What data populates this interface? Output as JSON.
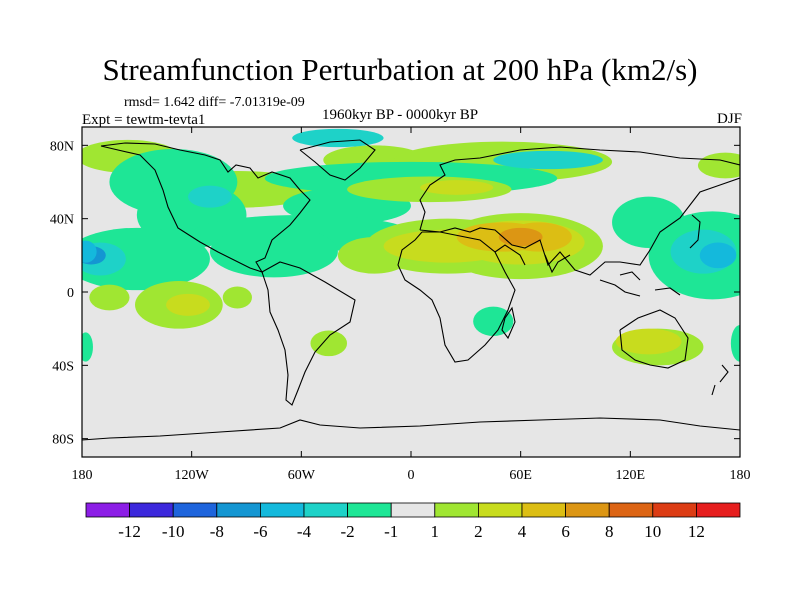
{
  "chart_data": {
    "type": "heatmap",
    "title": "Streamfunction Perturbation at 200 hPa (km2/s)",
    "stats_label": "rmsd= 1.642 diff= -7.01319e-09",
    "experiment_label": "Expt = tewtm-tevta1",
    "period_label": "1960kyr BP - 0000kyr BP",
    "season_label": "DJF",
    "x_axis": {
      "range": [
        -180,
        180
      ],
      "ticks": [
        {
          "value": -180,
          "label": "180"
        },
        {
          "value": -120,
          "label": "120W"
        },
        {
          "value": -60,
          "label": "60W"
        },
        {
          "value": 0,
          "label": "0"
        },
        {
          "value": 60,
          "label": "60E"
        },
        {
          "value": 120,
          "label": "120E"
        },
        {
          "value": 180,
          "label": "180"
        }
      ]
    },
    "y_axis": {
      "range": [
        -90,
        90
      ],
      "ticks": [
        {
          "value": 80,
          "label": "80N"
        },
        {
          "value": 40,
          "label": "40N"
        },
        {
          "value": 0,
          "label": "0"
        },
        {
          "value": -40,
          "label": "40S"
        },
        {
          "value": -80,
          "label": "80S"
        }
      ]
    },
    "colorbar": {
      "colors": [
        "#8c1ee6",
        "#3c28dc",
        "#1e64dc",
        "#1496d2",
        "#14b9dc",
        "#1ed2c8",
        "#1ee696",
        "#e6e6e6",
        "#a0e632",
        "#c8dc1e",
        "#dcbe14",
        "#dc9614",
        "#dc6414",
        "#dc3c14",
        "#e61e1e"
      ],
      "labels": [
        "-12",
        "-10",
        "-8",
        "-6",
        "-4",
        "-2",
        "-1",
        "1",
        "2",
        "4",
        "6",
        "8",
        "10",
        "12"
      ]
    },
    "field_regions": [
      {
        "lon": -155,
        "lat": 74,
        "rx": 28,
        "ry": 9,
        "level": 1
      },
      {
        "lon": -95,
        "lat": 56,
        "rx": 45,
        "ry": 10,
        "level": 1
      },
      {
        "lon": -20,
        "lat": 72,
        "rx": 28,
        "ry": 8,
        "level": 1
      },
      {
        "lon": 50,
        "lat": 71,
        "rx": 60,
        "ry": 11,
        "level": 1
      },
      {
        "lon": 172,
        "lat": 69,
        "rx": 15,
        "ry": 7,
        "level": 1
      },
      {
        "lon": -130,
        "lat": 60,
        "rx": 35,
        "ry": 18,
        "level": -1
      },
      {
        "lon": -120,
        "lat": 42,
        "rx": 30,
        "ry": 18,
        "level": -1
      },
      {
        "lon": 0,
        "lat": 62,
        "rx": 80,
        "ry": 9,
        "level": -1
      },
      {
        "lon": -35,
        "lat": 47,
        "rx": 35,
        "ry": 10,
        "level": -1
      },
      {
        "lon": -60,
        "lat": 32,
        "rx": 60,
        "ry": 10,
        "level": -1
      },
      {
        "lon": -150,
        "lat": 18,
        "rx": 40,
        "ry": 17,
        "level": -1
      },
      {
        "lon": -75,
        "lat": 22,
        "rx": 35,
        "ry": 14,
        "level": -1
      },
      {
        "lon": -110,
        "lat": 52,
        "rx": 12,
        "ry": 6,
        "level": -2
      },
      {
        "lon": -40,
        "lat": 84,
        "rx": 25,
        "ry": 5,
        "level": -2
      },
      {
        "lon": 75,
        "lat": 72,
        "rx": 30,
        "ry": 5,
        "level": -2
      },
      {
        "lon": -170,
        "lat": 18,
        "rx": 14,
        "ry": 9,
        "level": -2
      },
      {
        "lon": -175,
        "lat": 20,
        "rx": 8,
        "ry": 5,
        "level": -6
      },
      {
        "lon": 10,
        "lat": 56,
        "rx": 45,
        "ry": 7,
        "level": 1
      },
      {
        "lon": 25,
        "lat": 57,
        "rx": 20,
        "ry": 4,
        "level": 2
      },
      {
        "lon": -165,
        "lat": -3,
        "rx": 11,
        "ry": 7,
        "level": 1
      },
      {
        "lon": -127,
        "lat": -7,
        "rx": 24,
        "ry": 13,
        "level": 1
      },
      {
        "lon": -122,
        "lat": -7,
        "rx": 12,
        "ry": 6,
        "level": 2
      },
      {
        "lon": -95,
        "lat": -3,
        "rx": 8,
        "ry": 6,
        "level": 1
      },
      {
        "lon": -45,
        "lat": -28,
        "rx": 10,
        "ry": 7,
        "level": 1
      },
      {
        "lon": 20,
        "lat": 25,
        "rx": 45,
        "ry": 15,
        "level": 1
      },
      {
        "lon": 60,
        "lat": 25,
        "rx": 45,
        "ry": 18,
        "level": 1
      },
      {
        "lon": -20,
        "lat": 20,
        "rx": 20,
        "ry": 10,
        "level": 1
      },
      {
        "lon": 20,
        "lat": 25,
        "rx": 35,
        "ry": 9,
        "level": 2
      },
      {
        "lon": 60,
        "lat": 27,
        "rx": 35,
        "ry": 12,
        "level": 2
      },
      {
        "lon": 50,
        "lat": 30,
        "rx": 25,
        "ry": 8,
        "level": 4
      },
      {
        "lon": 70,
        "lat": 30,
        "rx": 18,
        "ry": 8,
        "level": 4
      },
      {
        "lon": 60,
        "lat": 30,
        "rx": 12,
        "ry": 5,
        "level": 6
      },
      {
        "lon": 45,
        "lat": -16,
        "rx": 11,
        "ry": 8,
        "level": -1
      },
      {
        "lon": 135,
        "lat": -30,
        "rx": 25,
        "ry": 10,
        "level": 1
      },
      {
        "lon": 130,
        "lat": -27,
        "rx": 18,
        "ry": 7,
        "level": 2
      },
      {
        "lon": -178,
        "lat": -30,
        "rx": 4,
        "ry": 8,
        "level": -1
      },
      {
        "lon": 180,
        "lat": -28,
        "rx": 5,
        "ry": 10,
        "level": -1
      },
      {
        "lon": 130,
        "lat": 38,
        "rx": 20,
        "ry": 14,
        "level": -1
      },
      {
        "lon": 165,
        "lat": 20,
        "rx": 35,
        "ry": 24,
        "level": -1
      },
      {
        "lon": 160,
        "lat": 22,
        "rx": 18,
        "ry": 12,
        "level": -2
      },
      {
        "lon": 168,
        "lat": 20,
        "rx": 10,
        "ry": 7,
        "level": -4
      },
      {
        "lon": -178,
        "lat": 22,
        "rx": 6,
        "ry": 6,
        "level": -4
      }
    ]
  }
}
